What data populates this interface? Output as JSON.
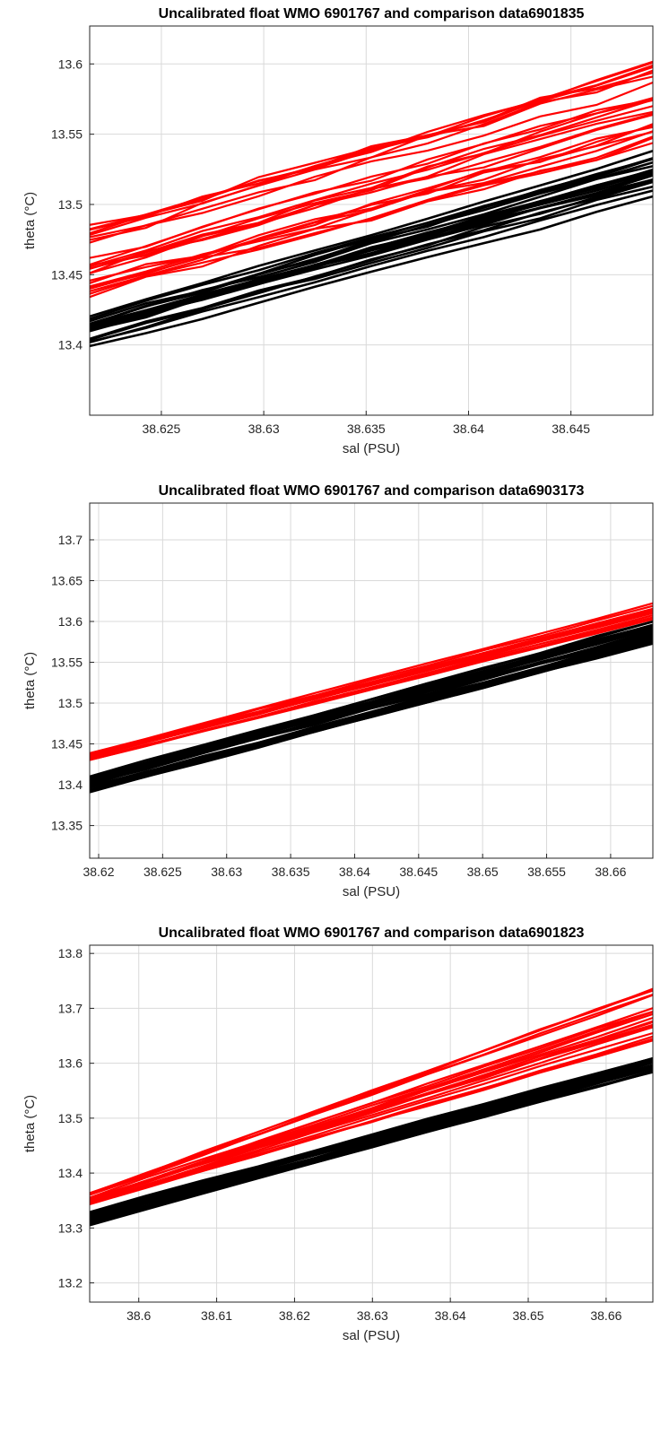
{
  "chart_data": [
    {
      "type": "line",
      "title": "Uncalibrated float WMO 6901767 and comparison data6901835",
      "xlabel": "sal (PSU)",
      "ylabel": "theta (°C)",
      "xlim": [
        38.6215,
        38.649
      ],
      "ylim": [
        13.35,
        13.627
      ],
      "xticks": [
        "38.625",
        "38.63",
        "38.635",
        "38.64",
        "38.645"
      ],
      "yticks": [
        "13.4",
        "13.45",
        "13.5",
        "13.55",
        "13.6"
      ],
      "grid": true,
      "series": [
        {
          "color": "#ff0000",
          "band": {
            "x0": 38.6215,
            "x1": 38.649,
            "y0_min": 13.436,
            "y0_max": 13.485,
            "y1_min": 13.545,
            "y1_max": 13.603
          },
          "n_lines": 24
        },
        {
          "color": "#000000",
          "band": {
            "x0": 38.6215,
            "x1": 38.649,
            "y0_min": 13.397,
            "y0_max": 13.422,
            "y1_min": 13.505,
            "y1_max": 13.537
          },
          "n_lines": 22
        }
      ]
    },
    {
      "type": "line",
      "title": "Uncalibrated float WMO 6901767 and comparison data6903173",
      "xlabel": "sal (PSU)",
      "ylabel": "theta (°C)",
      "xlim": [
        38.6193,
        38.6633
      ],
      "ylim": [
        13.31,
        13.745
      ],
      "xticks": [
        "38.62",
        "38.625",
        "38.63",
        "38.635",
        "38.64",
        "38.645",
        "38.65",
        "38.655",
        "38.66"
      ],
      "yticks": [
        "13.35",
        "13.4",
        "13.45",
        "13.5",
        "13.55",
        "13.6",
        "13.65",
        "13.7"
      ],
      "grid": true,
      "series": [
        {
          "color": "#ff0000",
          "band": {
            "x0": 38.6193,
            "x1": 38.6633,
            "y0_min": 13.428,
            "y0_max": 13.44,
            "y1_min": 13.6,
            "y1_max": 13.622
          },
          "n_lines": 16
        },
        {
          "color": "#000000",
          "band": {
            "x0": 38.6193,
            "x1": 38.6633,
            "y0_min": 13.39,
            "y0_max": 13.41,
            "y1_min": 13.568,
            "y1_max": 13.6
          },
          "n_lines": 26
        }
      ]
    },
    {
      "type": "line",
      "title": "Uncalibrated float WMO 6901767 and comparison data6901823",
      "xlabel": "sal (PSU)",
      "ylabel": "theta (°C)",
      "xlim": [
        38.5937,
        38.666
      ],
      "ylim": [
        13.165,
        13.815
      ],
      "xticks": [
        "38.6",
        "38.61",
        "38.62",
        "38.63",
        "38.64",
        "38.65",
        "38.66"
      ],
      "yticks": [
        "13.2",
        "13.3",
        "13.4",
        "13.5",
        "13.6",
        "13.7",
        "13.8"
      ],
      "grid": true,
      "series": [
        {
          "color": "#ff0000",
          "band": {
            "x0": 38.5937,
            "x1": 38.666,
            "y0_min": 13.337,
            "y0_max": 13.365,
            "y1_min": 13.62,
            "y1_max": 13.735
          },
          "n_lines": 20
        },
        {
          "color": "#000000",
          "band": {
            "x0": 38.5937,
            "x1": 38.666,
            "y0_min": 13.305,
            "y0_max": 13.33,
            "y1_min": 13.585,
            "y1_max": 13.61
          },
          "n_lines": 22
        }
      ]
    }
  ]
}
